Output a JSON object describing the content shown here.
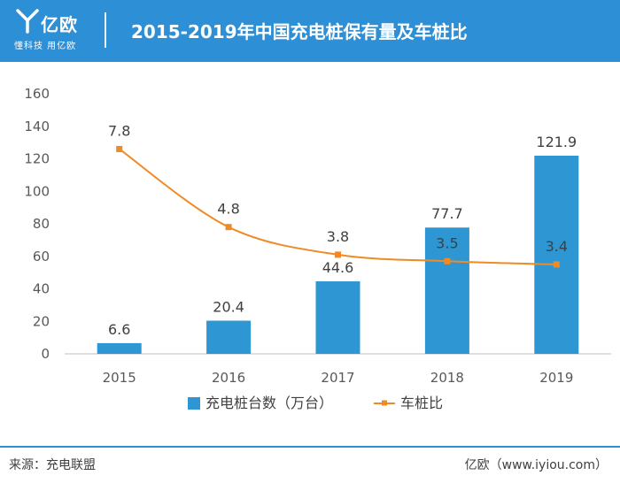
{
  "header": {
    "brand": "亿欧",
    "slogan": "懂科技 用亿欧",
    "title": "2015-2019年中国充电桩保有量及车桩比"
  },
  "footer": {
    "source": "来源：充电联盟",
    "brand": "亿欧（www.iyiou.com）"
  },
  "colors": {
    "header_bg": "#2d8fd6",
    "bar": "#2e97d3",
    "line": "#f08a24"
  },
  "chart_data": {
    "type": "bar",
    "categories": [
      "2015",
      "2016",
      "2017",
      "2018",
      "2019"
    ],
    "ylim": [
      0,
      160
    ],
    "yticks": [
      0,
      20,
      40,
      60,
      80,
      100,
      120,
      140,
      160
    ],
    "series": [
      {
        "name": "充电桩台数（万台）",
        "type": "bar",
        "values": [
          6.6,
          20.4,
          44.6,
          77.7,
          121.9
        ],
        "labels": [
          "6.6",
          "20.4",
          "44.6",
          "77.7",
          "121.9"
        ]
      },
      {
        "name": "车桩比",
        "type": "line",
        "values": [
          7.8,
          4.8,
          3.8,
          3.5,
          3.4
        ],
        "labels": [
          "7.8",
          "4.8",
          "3.8",
          "3.5",
          "3.4"
        ],
        "plotted_on_left_axis": [
          126,
          78,
          61,
          57,
          55
        ]
      }
    ],
    "legend_position": "bottom",
    "grid": false
  }
}
